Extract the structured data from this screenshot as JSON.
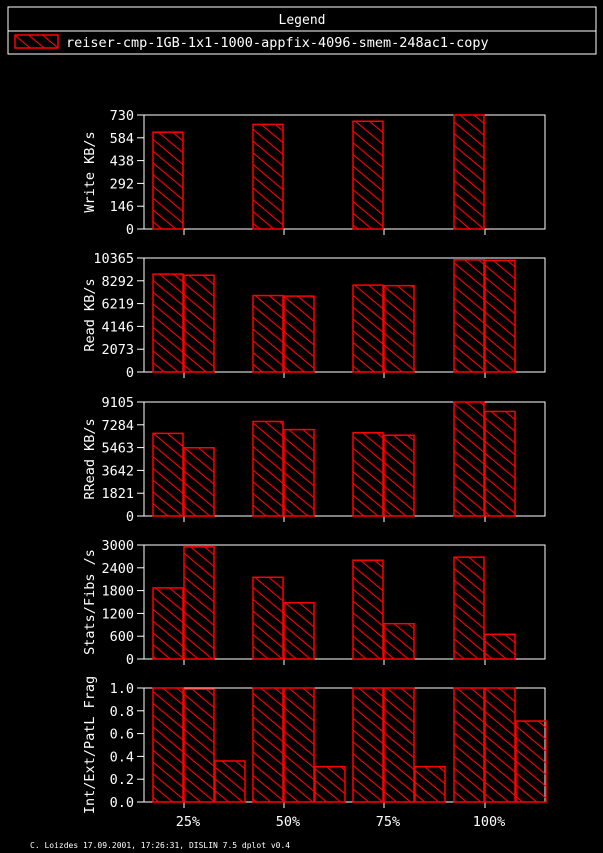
{
  "legend": {
    "title": "Legend",
    "entries": [
      "reiser-cmp-1GB-1x1-1000-appfix-4096-smem-248ac1-copy"
    ]
  },
  "footer": "C. Loizdes 17.09.2001, 17:26:31, DISLIN 7.5 dplot v0.4",
  "colors": {
    "bar_stroke": "#ff0000",
    "background": "#000000",
    "axis": "#ffffff"
  },
  "chart_data": [
    {
      "type": "bar",
      "ylabel": "Write KB/s",
      "categories": [
        "25%",
        "50%",
        "75%",
        "100%"
      ],
      "yticks": [
        "0",
        "146",
        "292",
        "438",
        "584",
        "730"
      ],
      "ylim": [
        0,
        730
      ],
      "series": [
        {
          "values": [
            620,
            670,
            690,
            730
          ]
        }
      ]
    },
    {
      "type": "bar",
      "ylabel": "Read KB/s",
      "categories": [
        "25%",
        "50%",
        "75%",
        "100%"
      ],
      "yticks": [
        "0",
        "2073",
        "4146",
        "6219",
        "8292",
        "10365"
      ],
      "ylim": [
        0,
        10365
      ],
      "series": [
        {
          "values": [
            8900,
            6950,
            7900,
            10200
          ]
        },
        {
          "values": [
            8800,
            6900,
            7850,
            10150
          ]
        }
      ]
    },
    {
      "type": "bar",
      "ylabel": "RRead KB/s",
      "categories": [
        "25%",
        "50%",
        "75%",
        "100%"
      ],
      "yticks": [
        "0",
        "1821",
        "3642",
        "5463",
        "7284",
        "9105"
      ],
      "ylim": [
        0,
        9105
      ],
      "series": [
        {
          "values": [
            6600,
            7550,
            6650,
            9105
          ]
        },
        {
          "values": [
            5450,
            6900,
            6450,
            8350
          ]
        }
      ]
    },
    {
      "type": "bar",
      "ylabel": "Stats/Fibs /s",
      "categories": [
        "25%",
        "50%",
        "75%",
        "100%"
      ],
      "yticks": [
        "0",
        "600",
        "1200",
        "1800",
        "2400",
        "3000"
      ],
      "ylim": [
        0,
        3000
      ],
      "series": [
        {
          "values": [
            1870,
            2150,
            2600,
            2680
          ]
        },
        {
          "values": [
            2950,
            1480,
            930,
            650
          ]
        }
      ]
    },
    {
      "type": "bar",
      "ylabel": "Int/Ext/PatL Frag",
      "categories": [
        "25%",
        "50%",
        "75%",
        "100%"
      ],
      "yticks": [
        "0.0",
        "0.2",
        "0.4",
        "0.6",
        "0.8",
        "1.0"
      ],
      "ylim": [
        0,
        1.0
      ],
      "show_xticklabels": true,
      "series": [
        {
          "values": [
            1.0,
            1.0,
            1.0,
            1.0
          ]
        },
        {
          "values": [
            0.99,
            1.0,
            1.0,
            1.0
          ]
        },
        {
          "values": [
            0.36,
            0.31,
            0.31,
            0.71
          ]
        }
      ]
    }
  ]
}
